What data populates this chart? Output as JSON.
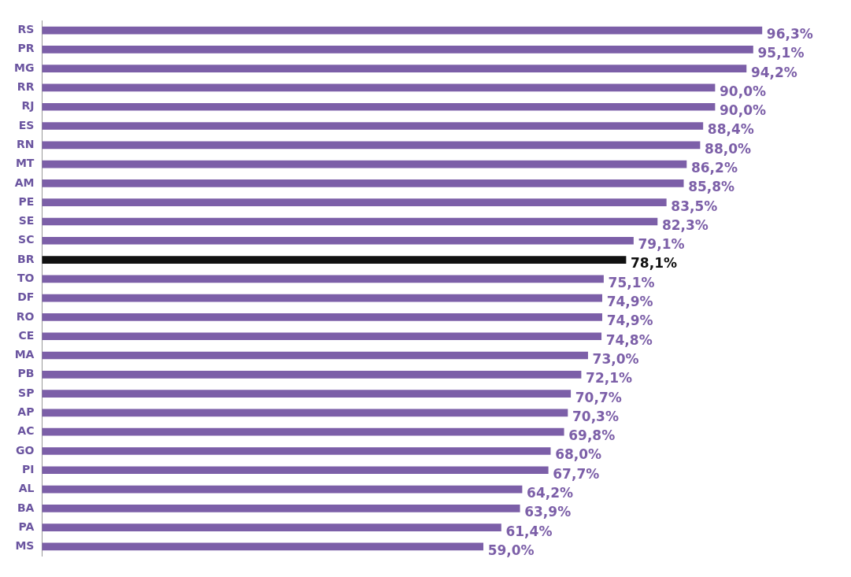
{
  "chart_data": {
    "type": "bar",
    "orientation": "horizontal",
    "categories": [
      "RS",
      "PR",
      "MG",
      "RR",
      "RJ",
      "ES",
      "RN",
      "MT",
      "AM",
      "PE",
      "SE",
      "SC",
      "BR",
      "TO",
      "DF",
      "RO",
      "CE",
      "MA",
      "PB",
      "SP",
      "AP",
      "AC",
      "GO",
      "PI",
      "AL",
      "BA",
      "PA",
      "MS"
    ],
    "values": [
      96.3,
      95.1,
      94.2,
      90.0,
      90.0,
      88.4,
      88.0,
      86.2,
      85.8,
      83.5,
      82.3,
      79.1,
      78.1,
      75.1,
      74.9,
      74.9,
      74.8,
      73.0,
      72.1,
      70.7,
      70.3,
      69.8,
      68.0,
      67.7,
      64.2,
      63.9,
      61.4,
      59.0
    ],
    "colors": [
      "#7c5fa8",
      "#7c5fa8",
      "#7c5fa8",
      "#7c5fa8",
      "#7c5fa8",
      "#7c5fa8",
      "#7c5fa8",
      "#7c5fa8",
      "#7c5fa8",
      "#7c5fa8",
      "#7c5fa8",
      "#7c5fa8",
      "#111111",
      "#7c5fa8",
      "#7c5fa8",
      "#7c5fa8",
      "#7c5fa8",
      "#7c5fa8",
      "#7c5fa8",
      "#7c5fa8",
      "#7c5fa8",
      "#7c5fa8",
      "#7c5fa8",
      "#7c5fa8",
      "#7c5fa8",
      "#7c5fa8",
      "#7c5fa8",
      "#7c5fa8"
    ],
    "value_labels": [
      "96,3%",
      "95,1%",
      "94,2%",
      "90,0%",
      "90,0%",
      "88,4%",
      "88,0%",
      "86,2%",
      "85,8%",
      "83,5%",
      "82,3%",
      "79,1%",
      "78,1%",
      "75,1%",
      "74,9%",
      "74,9%",
      "74,8%",
      "73,0%",
      "72,1%",
      "70,7%",
      "70,3%",
      "69,8%",
      "68,0%",
      "67,7%",
      "64,2%",
      "63,9%",
      "61,4%",
      "59,0%"
    ],
    "tick_labels": "y",
    "grid": false,
    "legend": false
  }
}
